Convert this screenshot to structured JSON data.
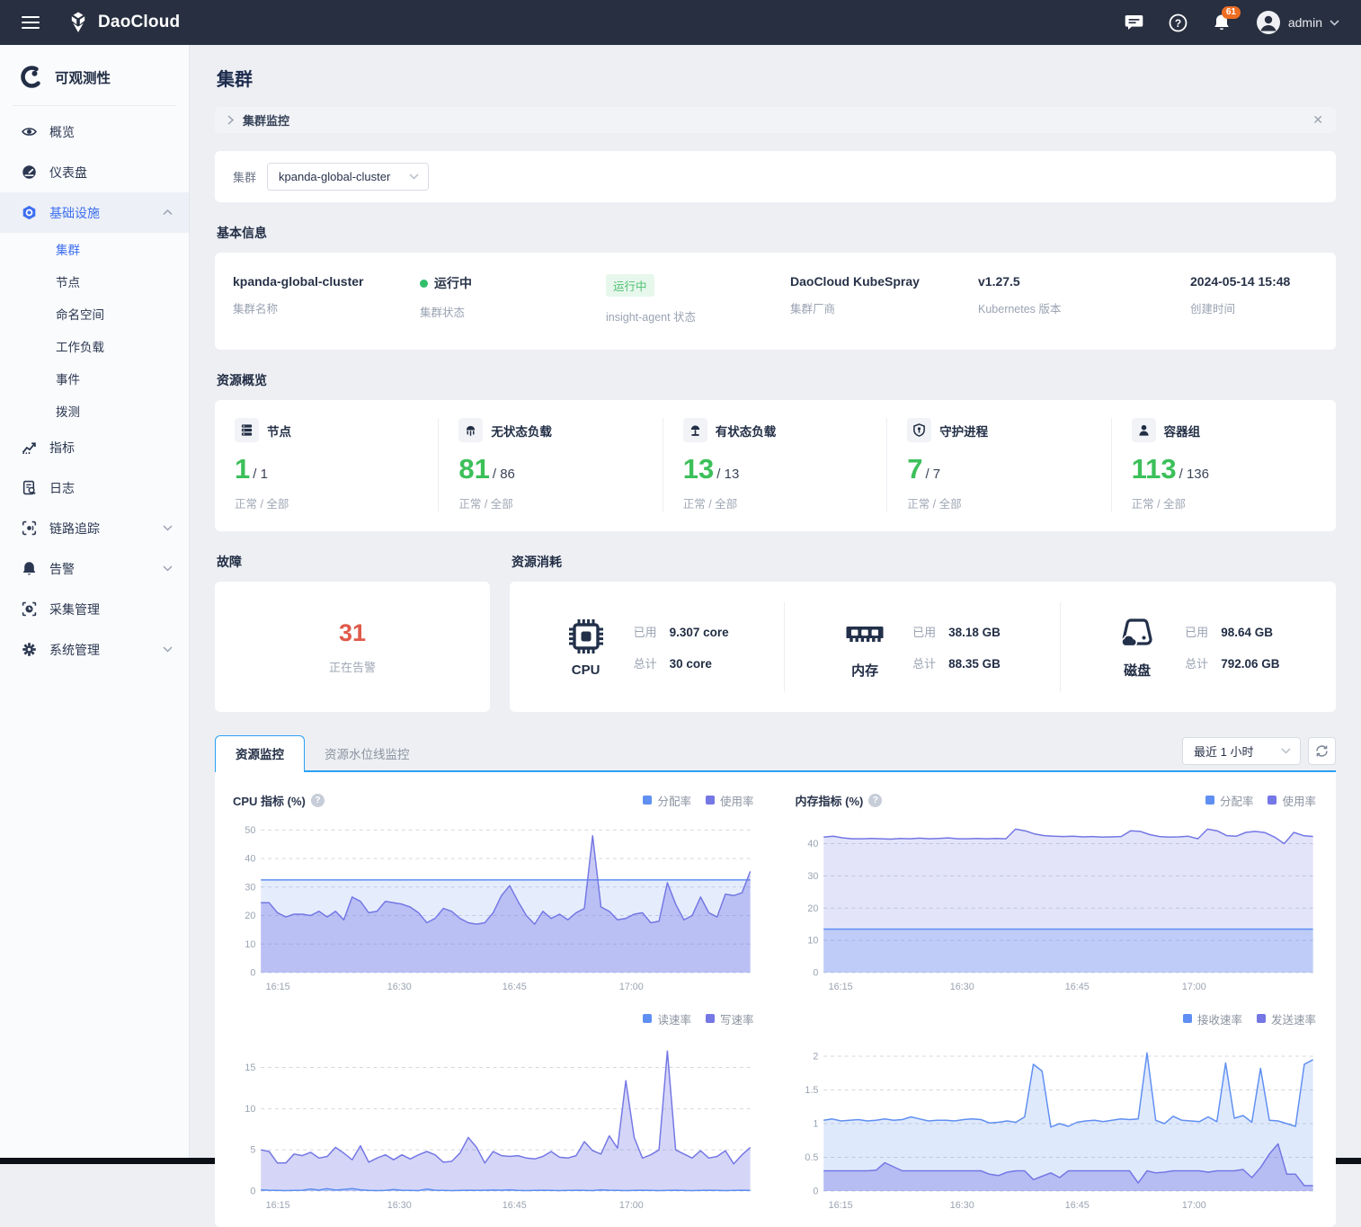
{
  "topbar": {
    "brand": "DaoCloud",
    "notification_count": "61",
    "user": "admin"
  },
  "sidebar": {
    "title": "可观测性",
    "items": [
      {
        "label": "概览"
      },
      {
        "label": "仪表盘"
      },
      {
        "label": "基础设施"
      },
      {
        "label": "指标"
      },
      {
        "label": "日志"
      },
      {
        "label": "链路追踪"
      },
      {
        "label": "告警"
      },
      {
        "label": "采集管理"
      },
      {
        "label": "系统管理"
      }
    ],
    "sub_items": [
      {
        "label": "集群"
      },
      {
        "label": "节点"
      },
      {
        "label": "命名空间"
      },
      {
        "label": "工作负载"
      },
      {
        "label": "事件"
      },
      {
        "label": "拨测"
      }
    ]
  },
  "page": {
    "title": "集群",
    "banner": "集群监控"
  },
  "filter": {
    "label": "集群",
    "value": "kpanda-global-cluster"
  },
  "basic_info": {
    "title": "基本信息",
    "fields": [
      {
        "value": "kpanda-global-cluster",
        "label": "集群名称"
      },
      {
        "value": "运行中",
        "label": "集群状态"
      },
      {
        "value": "运行中",
        "label": "insight-agent 状态"
      },
      {
        "value": "DaoCloud KubeSpray",
        "label": "集群厂商"
      },
      {
        "value": "v1.27.5",
        "label": "Kubernetes 版本"
      },
      {
        "value": "2024-05-14 15:48",
        "label": "创建时间"
      }
    ]
  },
  "resource_overview": {
    "title": "资源概览",
    "caption": "正常 / 全部",
    "items": [
      {
        "name": "节点",
        "ok": "1",
        "total": "/ 1"
      },
      {
        "name": "无状态负载",
        "ok": "81",
        "total": "/ 86"
      },
      {
        "name": "有状态负载",
        "ok": "13",
        "total": "/ 13"
      },
      {
        "name": "守护进程",
        "ok": "7",
        "total": "/ 7"
      },
      {
        "name": "容器组",
        "ok": "113",
        "total": "/ 136"
      }
    ]
  },
  "faults": {
    "title": "故障",
    "count": "31",
    "caption": "正在告警"
  },
  "consumption": {
    "title": "资源消耗",
    "used_label": "已用",
    "total_label": "总计",
    "items": [
      {
        "name": "CPU",
        "used": "9.307 core",
        "total": "30 core"
      },
      {
        "name": "内存",
        "used": "38.18 GB",
        "total": "88.35 GB"
      },
      {
        "name": "磁盘",
        "used": "98.64 GB",
        "total": "792.06 GB"
      }
    ]
  },
  "monitor": {
    "tab_active": "资源监控",
    "tab_inactive": "资源水位线监控",
    "time_range": "最近 1 小时"
  },
  "colors": {
    "accent_blue": "#2aa0f6",
    "brand_blue": "#3d6ff0",
    "green": "#3cc05a",
    "red": "#e05a4a",
    "badge_orange": "#ed6d24",
    "series_blue": "#5f8ff2",
    "series_purple": "#7477e4"
  },
  "chart_data": [
    {
      "type": "area",
      "title": "CPU 指标 (%)",
      "x_ticks": [
        "16:15",
        "16:30",
        "16:45",
        "17:00"
      ],
      "yticks": [
        0,
        10,
        20,
        30,
        40,
        50
      ],
      "ylim": [
        0,
        52
      ],
      "grid": true,
      "legend_position": "top-right",
      "draw_order": [
        0,
        1
      ],
      "series": [
        {
          "name": "分配率",
          "color": "#5f8ff2",
          "fill": "rgba(95,143,242,0.16)",
          "values": [
            32.5,
            32.5
          ]
        },
        {
          "name": "使用率",
          "color": "#7477e4",
          "fill": "rgba(116,119,228,0.38)",
          "values": [
            24.5,
            24.5,
            21,
            19.5,
            20.5,
            20.5,
            20,
            21.5,
            19.5,
            21.5,
            18.5,
            26.5,
            25,
            21,
            21.5,
            25,
            24.5,
            24,
            23,
            21,
            17.5,
            19,
            22.5,
            21.5,
            19,
            17.5,
            17,
            17.5,
            21,
            27,
            30.5,
            25,
            20,
            17,
            21.5,
            19,
            20.5,
            18.5,
            21,
            22.5,
            48,
            23,
            21.5,
            18.5,
            19,
            20.5,
            21,
            17.5,
            18,
            31.5,
            24,
            18.5,
            20,
            26.5,
            21,
            19.5,
            27.5,
            27,
            28,
            35.5
          ]
        }
      ]
    },
    {
      "type": "area",
      "title": "内存指标 (%)",
      "x_ticks": [
        "16:15",
        "16:30",
        "16:45",
        "17:00"
      ],
      "yticks": [
        0,
        10,
        20,
        30,
        40
      ],
      "ylim": [
        0,
        46
      ],
      "grid": true,
      "legend_position": "top-right",
      "draw_order": [
        1,
        0
      ],
      "series": [
        {
          "name": "分配率",
          "color": "#5f8ff2",
          "fill": "rgba(95,143,242,0.28)",
          "values": [
            13.5,
            13.5
          ]
        },
        {
          "name": "使用率",
          "color": "#7477e4",
          "fill": "rgba(116,119,228,0.20)",
          "values": [
            42,
            42.3,
            41.8,
            41.5,
            41.5,
            41.6,
            41.5,
            41.4,
            41.6,
            41.5,
            41.7,
            41.5,
            41.6,
            41.8,
            41.5,
            41.5,
            41.6,
            41.5,
            41.6,
            41.5,
            44.5,
            44,
            43,
            42.5,
            42.3,
            42.2,
            42.3,
            42.1,
            42.2,
            42,
            42.1,
            42.2,
            44,
            43.8,
            42.8,
            42.2,
            42,
            42.1,
            42.3,
            41.5,
            44.5,
            44,
            42.5,
            42.3,
            43.5,
            43.8,
            43.4,
            42,
            40,
            43.5,
            42.5,
            42.2
          ]
        }
      ]
    },
    {
      "type": "area",
      "x_ticks": [
        "16:15",
        "16:30",
        "16:45",
        "17:00"
      ],
      "yticks": [
        0,
        5,
        10,
        15
      ],
      "ylim": [
        0,
        18
      ],
      "grid": true,
      "legend_position": "top-right",
      "draw_order": [
        1,
        0
      ],
      "series": [
        {
          "name": "读速率",
          "color": "#5f8ff2",
          "fill": "rgba(95,143,242,0.25)",
          "values": [
            0.15,
            0.1,
            0.08,
            0.06,
            0.08,
            0.1,
            0.25,
            0.12,
            0.28,
            0.12,
            0.2,
            0.3,
            0.15,
            0.08,
            0.06,
            0.08,
            0.2,
            0.1,
            0.08,
            0.06,
            0.25,
            0.1,
            0.08,
            0.06,
            0.08,
            0.1,
            0.08,
            0.1,
            0.12,
            0.1,
            0.15,
            0.08,
            0.06,
            0.08,
            0.1,
            0.08,
            0.06,
            0.08,
            0.1,
            0.08,
            0.06,
            0.15,
            0.1,
            0.08,
            0.06,
            0.08,
            0.1,
            0.08,
            0.06,
            0.08,
            0.1,
            0.08,
            0.06,
            0.08,
            0.1,
            0.08,
            0.06,
            0.08,
            0.1,
            0.08
          ]
        },
        {
          "name": "写速率",
          "color": "#7477e4",
          "fill": "rgba(116,119,228,0.30)",
          "values": [
            5,
            4.8,
            3.4,
            3.4,
            4.5,
            4.3,
            4.7,
            4,
            4.2,
            5.3,
            4.6,
            3.8,
            5.5,
            3.5,
            4,
            4.4,
            3.8,
            4.4,
            3.9,
            4.4,
            4.8,
            4.4,
            3.5,
            3.6,
            4.6,
            6.5,
            5.3,
            3.4,
            4.8,
            4.3,
            4.2,
            4.3,
            4,
            3.9,
            4.2,
            4.8,
            4.1,
            4,
            4.3,
            6,
            4.9,
            4.5,
            6.7,
            5.2,
            13.4,
            6.5,
            4,
            4.4,
            5,
            17,
            5,
            4.5,
            4,
            4.9,
            4,
            4.2,
            4.9,
            3.3,
            4.4,
            5.3
          ]
        }
      ]
    },
    {
      "type": "area",
      "x_ticks": [
        "16:15",
        "16:30",
        "16:45",
        "17:00"
      ],
      "yticks": [
        0,
        0.5,
        1,
        1.5,
        2
      ],
      "ylim": [
        0,
        2.2
      ],
      "grid": true,
      "legend_position": "top-right",
      "draw_order": [
        0,
        1
      ],
      "series": [
        {
          "name": "接收速率",
          "color": "#5f8ff2",
          "fill": "rgba(95,143,242,0.20)",
          "values": [
            1.05,
            1.07,
            1.04,
            1.05,
            1.06,
            1.04,
            1.05,
            1.07,
            1.05,
            1.06,
            1.1,
            1.07,
            1.04,
            1.05,
            1.05,
            1.04,
            1.06,
            1.07,
            1.06,
            1.01,
            1.02,
            1.04,
            1.02,
            1.1,
            1.88,
            1.78,
            0.95,
            1,
            0.96,
            1.02,
            1.04,
            1.05,
            1.03,
            1.05,
            1.07,
            1.06,
            1.07,
            2.05,
            1.05,
            1,
            1.11,
            1.05,
            1.04,
            1.03,
            1.1,
            1.03,
            1.9,
            1.08,
            1.12,
            1.02,
            1.82,
            1.05,
            1.04,
            1,
            0.96,
            1.88,
            1.95
          ]
        },
        {
          "name": "发送速率",
          "color": "#7477e4",
          "fill": "rgba(116,119,228,0.38)",
          "values": [
            0.3,
            0.3,
            0.3,
            0.3,
            0.3,
            0.3,
            0.31,
            0.42,
            0.36,
            0.3,
            0.3,
            0.3,
            0.3,
            0.3,
            0.3,
            0.3,
            0.3,
            0.3,
            0.3,
            0.25,
            0.23,
            0.28,
            0.3,
            0.3,
            0.17,
            0.22,
            0.27,
            0.2,
            0.3,
            0.3,
            0.3,
            0.3,
            0.3,
            0.3,
            0.3,
            0.3,
            0.12,
            0.3,
            0.27,
            0.28,
            0.3,
            0.3,
            0.3,
            0.3,
            0.28,
            0.3,
            0.3,
            0.3,
            0.32,
            0.2,
            0.35,
            0.55,
            0.7,
            0.25,
            0.25,
            0.08,
            0.08
          ]
        }
      ]
    }
  ]
}
